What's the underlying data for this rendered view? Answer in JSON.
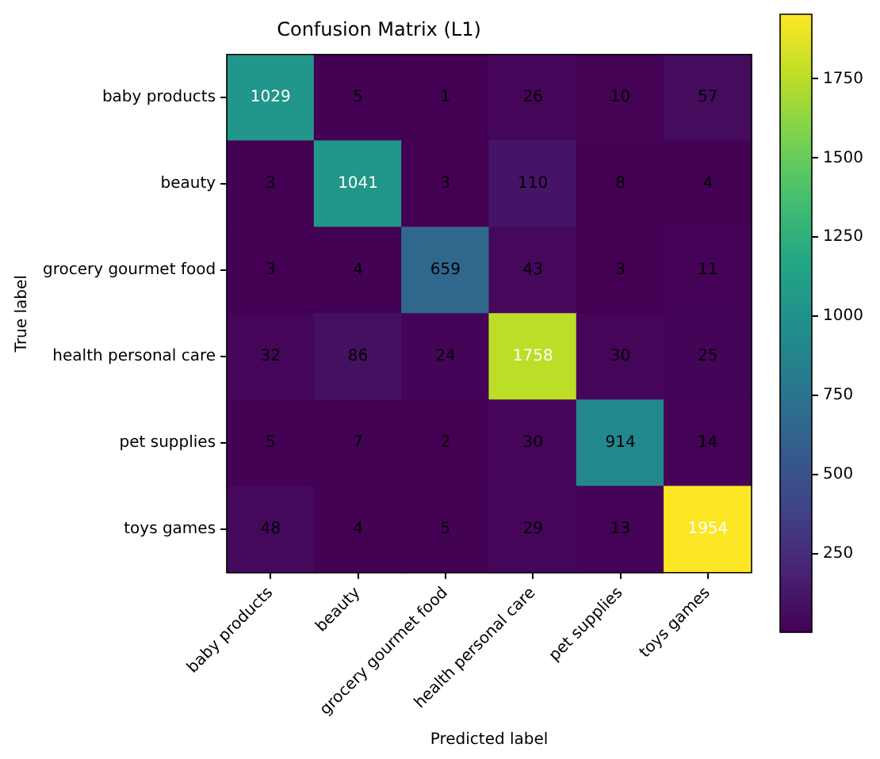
{
  "chart_data": {
    "type": "heatmap",
    "title": "Confusion Matrix (L1)",
    "xlabel": "Predicted label",
    "ylabel": "True label",
    "categories": [
      "baby products",
      "beauty",
      "grocery gourmet food",
      "health personal care",
      "pet supplies",
      "toys games"
    ],
    "y_categories": [
      "baby products",
      "beauty",
      "grocery gourmet food",
      "health personal care",
      "pet supplies",
      "toys games"
    ],
    "cells": [
      [
        1029,
        5,
        1,
        26,
        10,
        57
      ],
      [
        3,
        1041,
        3,
        110,
        8,
        4
      ],
      [
        3,
        4,
        659,
        43,
        3,
        11
      ],
      [
        32,
        86,
        24,
        1758,
        30,
        25
      ],
      [
        5,
        7,
        2,
        30,
        914,
        14
      ],
      [
        48,
        4,
        5,
        29,
        13,
        1954
      ]
    ],
    "data_labels": true,
    "clim": [
      1,
      1954
    ],
    "cticks": [
      250,
      500,
      750,
      1000,
      1250,
      1500,
      1750
    ]
  }
}
